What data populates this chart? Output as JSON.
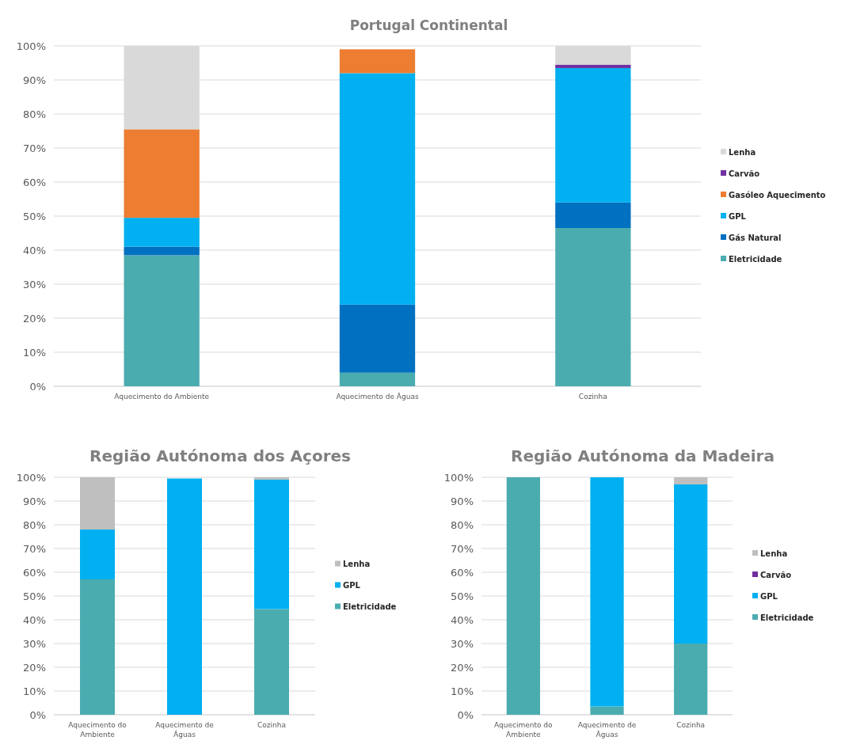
{
  "chart_data": [
    {
      "type": "bar",
      "title": "Portugal Continental",
      "stacked": true,
      "grid": "y",
      "legend": "right",
      "categories": [
        "Aquecimento do Ambiente",
        "Aquecimento de Águas",
        "Cozinha"
      ],
      "ylim": [
        0,
        100
      ],
      "yticks": [
        {
          "value": 0,
          "label": "0%"
        },
        {
          "value": 10,
          "label": "10%"
        },
        {
          "value": 20,
          "label": "20%"
        },
        {
          "value": 30,
          "label": "30%"
        },
        {
          "value": 40,
          "label": "40%"
        },
        {
          "value": 50,
          "label": "50%"
        },
        {
          "value": 60,
          "label": "60%"
        },
        {
          "value": 70,
          "label": "70%"
        },
        {
          "value": 80,
          "label": "80%"
        },
        {
          "value": 90,
          "label": "90%"
        },
        {
          "value": 100,
          "label": "100%"
        }
      ],
      "series": [
        {
          "name": "Eletricidade",
          "color": "#4bacb0",
          "values": [
            38.5,
            4,
            46.5
          ]
        },
        {
          "name": "Gás Natural",
          "color": "#0070c0",
          "values": [
            2.5,
            20,
            7.5
          ]
        },
        {
          "name": "GPL",
          "color": "#00b0f0",
          "values": [
            8.5,
            68,
            39.5
          ]
        },
        {
          "name": "Gasóleo Aquecimento",
          "color": "#ed7d31",
          "values": [
            26,
            7,
            0
          ]
        },
        {
          "name": "Carvão",
          "color": "#7030a0",
          "values": [
            0,
            0,
            1
          ]
        },
        {
          "name": "Lenha",
          "color": "#d9d9d9",
          "values": [
            24.5,
            0,
            5.5
          ]
        }
      ]
    },
    {
      "type": "bar",
      "title": "Região Autónoma dos Açores",
      "stacked": true,
      "grid": "y",
      "legend": "right",
      "categories": [
        "Aquecimento do Ambiente",
        "Aquecimento de Águas",
        "Cozinha"
      ],
      "ylim": [
        0,
        100
      ],
      "yticks": [
        {
          "value": 0,
          "label": "0%"
        },
        {
          "value": 10,
          "label": "10%"
        },
        {
          "value": 20,
          "label": "20%"
        },
        {
          "value": 30,
          "label": "30%"
        },
        {
          "value": 40,
          "label": "40%"
        },
        {
          "value": 50,
          "label": "50%"
        },
        {
          "value": 60,
          "label": "60%"
        },
        {
          "value": 70,
          "label": "70%"
        },
        {
          "value": 80,
          "label": "80%"
        },
        {
          "value": 90,
          "label": "90%"
        },
        {
          "value": 100,
          "label": "100%"
        }
      ],
      "series": [
        {
          "name": "Eletricidade",
          "color": "#4bacb0",
          "values": [
            57,
            0,
            44.5
          ]
        },
        {
          "name": "GPL",
          "color": "#00b0f0",
          "values": [
            21,
            99.5,
            54.5
          ]
        },
        {
          "name": "Lenha",
          "color": "#bfbfbf",
          "values": [
            22,
            0,
            1
          ]
        }
      ]
    },
    {
      "type": "bar",
      "title": "Região Autónoma da Madeira",
      "stacked": true,
      "grid": "y",
      "legend": "right",
      "categories": [
        "Aquecimento do Ambiente",
        "Aquecimento de Águas",
        "Cozinha"
      ],
      "ylim": [
        0,
        100
      ],
      "yticks": [
        {
          "value": 0,
          "label": "0%"
        },
        {
          "value": 10,
          "label": "10%"
        },
        {
          "value": 20,
          "label": "20%"
        },
        {
          "value": 30,
          "label": "30%"
        },
        {
          "value": 40,
          "label": "40%"
        },
        {
          "value": 50,
          "label": "50%"
        },
        {
          "value": 60,
          "label": "60%"
        },
        {
          "value": 70,
          "label": "70%"
        },
        {
          "value": 80,
          "label": "80%"
        },
        {
          "value": 90,
          "label": "90%"
        },
        {
          "value": 100,
          "label": "100%"
        }
      ],
      "series": [
        {
          "name": "Eletricidade",
          "color": "#4bacb0",
          "values": [
            100,
            3.5,
            30
          ]
        },
        {
          "name": "GPL",
          "color": "#00b0f0",
          "values": [
            0,
            96.5,
            67
          ]
        },
        {
          "name": "Carvão",
          "color": "#7030a0",
          "values": [
            0,
            0,
            0
          ]
        },
        {
          "name": "Lenha",
          "color": "#bfbfbf",
          "values": [
            0,
            0,
            3
          ]
        }
      ]
    }
  ]
}
